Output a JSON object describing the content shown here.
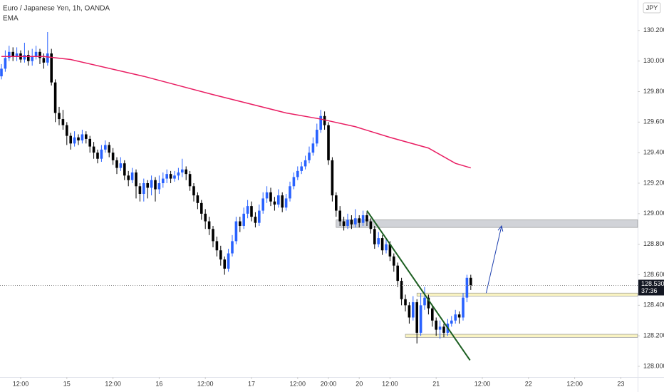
{
  "chart_data": {
    "type": "candlestick",
    "title": "Euro / Japanese Yen, 1h, OANDA",
    "currency": "JPY",
    "up_color": "#2962ff",
    "down_color": "#000000",
    "grid": false,
    "ylim": [
      127.93,
      130.4
    ],
    "yticks": [
      {
        "value": 130.2,
        "label": "130.200"
      },
      {
        "value": 130.0,
        "label": "130.000"
      },
      {
        "value": 129.8,
        "label": "129.800"
      },
      {
        "value": 129.6,
        "label": "129.600"
      },
      {
        "value": 129.4,
        "label": "129.400"
      },
      {
        "value": 129.2,
        "label": "129.200"
      },
      {
        "value": 129.0,
        "label": "129.000"
      },
      {
        "value": 128.8,
        "label": "128.800"
      },
      {
        "value": 128.6,
        "label": "128.600"
      },
      {
        "value": 128.4,
        "label": "128.400"
      },
      {
        "value": 128.2,
        "label": "128.200"
      },
      {
        "value": 128.0,
        "label": "128.000"
      }
    ],
    "xlim": [
      -0.37,
      165.37
    ],
    "xticks": [
      {
        "value": 5,
        "label": "12:00"
      },
      {
        "value": 17,
        "label": "15"
      },
      {
        "value": 29,
        "label": "12:00"
      },
      {
        "value": 41,
        "label": "16"
      },
      {
        "value": 53,
        "label": "12:00"
      },
      {
        "value": 65,
        "label": "17"
      },
      {
        "value": 77,
        "label": "12:00"
      },
      {
        "value": 85,
        "label": "20:00"
      },
      {
        "value": 93,
        "label": "20"
      },
      {
        "value": 101,
        "label": "12:00"
      },
      {
        "value": 113,
        "label": "21"
      },
      {
        "value": 125,
        "label": "12:00"
      },
      {
        "value": 137,
        "label": "22"
      },
      {
        "value": 149,
        "label": "12:00"
      },
      {
        "value": 161,
        "label": "23"
      }
    ],
    "open": [
      129.9,
      129.95,
      130.02,
      130.06,
      130.03,
      130.05,
      130.01,
      130.04,
      130.0,
      130.03,
      130.06,
      130.02,
      129.99,
      130.05,
      129.86,
      129.66,
      129.62,
      129.58,
      129.51,
      129.46,
      129.5,
      129.48,
      129.52,
      129.49,
      129.44,
      129.4,
      129.36,
      129.42,
      129.45,
      129.4,
      129.35,
      129.3,
      129.33,
      129.25,
      129.22,
      129.27,
      129.18,
      129.13,
      129.2,
      129.17,
      129.22,
      129.16,
      129.2,
      129.23,
      129.26,
      129.23,
      129.25,
      129.27,
      129.29,
      129.26,
      129.18,
      129.12,
      129.07,
      129.0,
      128.95,
      128.9,
      128.82,
      128.76,
      128.7,
      128.64,
      128.74,
      128.82,
      128.95,
      128.92,
      129.0,
      129.05,
      128.98,
      128.94,
      129.02,
      129.1,
      129.14,
      129.08,
      129.06,
      129.12,
      129.04,
      129.1,
      129.18,
      129.24,
      129.28,
      129.31,
      129.35,
      129.4,
      129.46,
      129.55,
      129.64,
      129.58,
      129.35,
      129.12,
      129.02,
      128.95,
      128.92,
      128.96,
      128.93,
      128.97,
      128.94,
      128.99,
      128.95,
      128.9,
      128.8,
      128.84,
      128.76,
      128.8,
      128.72,
      128.66,
      128.56,
      128.44,
      128.4,
      128.32,
      128.42,
      128.22,
      128.4,
      128.45,
      128.38,
      128.3,
      128.24,
      128.26,
      128.22,
      128.28,
      128.3,
      128.34,
      128.32,
      128.45,
      128.58
    ],
    "high": [
      129.98,
      130.07,
      130.1,
      130.09,
      130.09,
      130.07,
      130.12,
      130.07,
      130.08,
      130.1,
      130.08,
      130.05,
      130.19,
      130.08,
      129.88,
      129.7,
      129.68,
      129.6,
      129.53,
      129.54,
      129.52,
      129.55,
      129.54,
      129.51,
      129.47,
      129.42,
      129.45,
      129.48,
      129.47,
      129.43,
      129.37,
      129.37,
      129.35,
      129.28,
      129.3,
      129.29,
      129.2,
      129.23,
      129.22,
      129.25,
      129.24,
      129.25,
      129.27,
      129.29,
      129.28,
      129.28,
      129.3,
      129.36,
      129.31,
      129.28,
      129.2,
      129.14,
      129.09,
      129.03,
      128.98,
      128.92,
      128.85,
      128.79,
      128.72,
      128.77,
      128.86,
      128.98,
      128.98,
      129.04,
      129.09,
      129.08,
      129.01,
      129.06,
      129.14,
      129.18,
      129.17,
      129.11,
      129.16,
      129.14,
      129.13,
      129.21,
      129.27,
      129.31,
      129.34,
      129.38,
      129.44,
      129.5,
      129.59,
      129.68,
      129.67,
      129.6,
      129.37,
      129.14,
      129.05,
      128.98,
      129.0,
      128.99,
      129.03,
      128.99,
      129.02,
      129.01,
      128.97,
      128.92,
      128.88,
      128.86,
      128.83,
      128.82,
      128.74,
      128.68,
      128.58,
      128.47,
      128.42,
      128.46,
      128.44,
      128.48,
      128.52,
      128.47,
      128.4,
      128.32,
      128.3,
      128.28,
      128.31,
      128.33,
      128.37,
      128.36,
      128.48,
      128.6,
      128.6
    ],
    "low": [
      129.88,
      129.93,
      130.0,
      130.0,
      130.0,
      129.99,
      129.99,
      129.97,
      129.97,
      130.01,
      129.98,
      129.95,
      129.97,
      129.84,
      129.6,
      129.58,
      129.55,
      129.45,
      129.42,
      129.44,
      129.45,
      129.46,
      129.46,
      129.4,
      129.36,
      129.33,
      129.34,
      129.4,
      129.37,
      129.32,
      129.26,
      129.28,
      129.22,
      129.18,
      129.2,
      129.1,
      129.08,
      129.08,
      129.1,
      129.12,
      129.08,
      129.13,
      129.17,
      129.2,
      129.2,
      129.21,
      129.22,
      129.24,
      129.22,
      129.15,
      129.08,
      129.03,
      128.96,
      128.9,
      128.86,
      128.78,
      128.72,
      128.66,
      128.6,
      128.62,
      128.72,
      128.8,
      128.88,
      128.9,
      128.97,
      128.95,
      128.91,
      128.92,
      129.0,
      129.07,
      129.05,
      129.02,
      129.04,
      129.01,
      129.02,
      129.08,
      129.16,
      129.22,
      129.26,
      129.29,
      129.33,
      129.38,
      129.44,
      129.53,
      129.55,
      129.32,
      129.08,
      128.98,
      128.92,
      128.89,
      128.9,
      128.9,
      128.91,
      128.91,
      128.92,
      128.92,
      128.87,
      128.77,
      128.78,
      128.73,
      128.74,
      128.69,
      128.62,
      128.52,
      128.4,
      128.36,
      128.28,
      128.3,
      128.15,
      128.2,
      128.37,
      128.34,
      128.26,
      128.2,
      128.18,
      128.19,
      128.2,
      128.26,
      128.28,
      128.28,
      128.3,
      128.42,
      128.5
    ],
    "close": [
      129.95,
      130.02,
      130.06,
      130.03,
      130.05,
      130.01,
      130.04,
      130.0,
      130.03,
      130.06,
      130.02,
      129.99,
      130.05,
      129.86,
      129.66,
      129.62,
      129.58,
      129.51,
      129.46,
      129.5,
      129.48,
      129.52,
      129.49,
      129.44,
      129.4,
      129.36,
      129.42,
      129.45,
      129.4,
      129.35,
      129.3,
      129.33,
      129.25,
      129.22,
      129.27,
      129.18,
      129.13,
      129.2,
      129.17,
      129.22,
      129.16,
      129.2,
      129.23,
      129.26,
      129.23,
      129.25,
      129.27,
      129.29,
      129.26,
      129.18,
      129.12,
      129.07,
      129.0,
      128.95,
      128.9,
      128.82,
      128.76,
      128.7,
      128.64,
      128.74,
      128.82,
      128.95,
      128.92,
      129.0,
      129.05,
      128.98,
      128.94,
      129.02,
      129.1,
      129.14,
      129.08,
      129.06,
      129.12,
      129.04,
      129.1,
      129.18,
      129.24,
      129.28,
      129.31,
      129.35,
      129.4,
      129.46,
      129.55,
      129.64,
      129.58,
      129.35,
      129.12,
      129.02,
      128.95,
      128.92,
      128.96,
      128.93,
      128.97,
      128.94,
      128.99,
      128.95,
      128.9,
      128.8,
      128.84,
      128.76,
      128.8,
      128.72,
      128.66,
      128.56,
      128.44,
      128.4,
      128.32,
      128.42,
      128.22,
      128.4,
      128.45,
      128.38,
      128.3,
      128.24,
      128.26,
      128.22,
      128.28,
      128.3,
      128.34,
      128.32,
      128.45,
      128.58,
      128.53
    ],
    "ema": {
      "name": "EMA",
      "color": "#e91e63",
      "x": [
        0,
        11,
        18,
        37,
        55,
        74,
        83,
        92,
        101,
        111,
        118,
        122
      ],
      "values": [
        130.03,
        130.03,
        130.01,
        129.9,
        129.78,
        129.66,
        129.62,
        129.57,
        129.5,
        129.43,
        129.33,
        129.3
      ]
    },
    "zones": [
      {
        "x": 87,
        "low": 128.91,
        "high": 128.96,
        "color": "#b2b5be"
      },
      {
        "x": 108,
        "low": 128.46,
        "high": 128.48,
        "color": "#f5eb9a"
      },
      {
        "x": 105,
        "low": 128.19,
        "high": 128.21,
        "color": "#f5eb9a"
      }
    ],
    "trend_line": {
      "x": [
        95,
        121.8
      ],
      "values": [
        129.02,
        128.04
      ],
      "color": "#1b5e20"
    },
    "arrow": {
      "x": [
        126,
        130
      ],
      "values": [
        128.48,
        128.92
      ],
      "color": "#1e40af"
    },
    "last_price": {
      "value": 128.53,
      "label": "128.530",
      "countdown": "37:36"
    }
  }
}
